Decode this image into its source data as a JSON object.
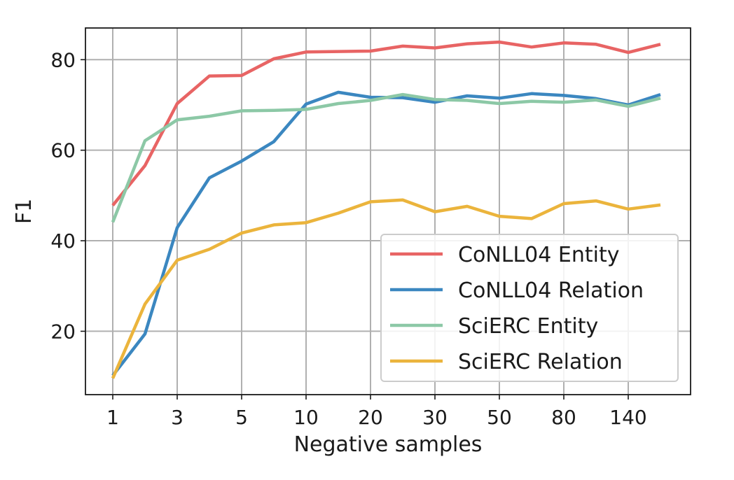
{
  "chart_data": {
    "type": "line",
    "xlabel": "Negative samples",
    "ylabel": "F1",
    "x": [
      1,
      2,
      3,
      4,
      5,
      7,
      10,
      15,
      20,
      25,
      30,
      40,
      50,
      60,
      80,
      100,
      140,
      180
    ],
    "xticks": [
      "1",
      "3",
      "5",
      "10",
      "20",
      "30",
      "50",
      "80",
      "140"
    ],
    "yticks": [
      20,
      40,
      60,
      80
    ],
    "ylim": [
      6,
      87
    ],
    "grid": true,
    "legend": "lower-right",
    "series": [
      {
        "name": "CoNLL04 Entity",
        "color": "#e86464",
        "values": [
          47.8,
          56.6,
          70.3,
          76.4,
          76.5,
          80.2,
          81.7,
          81.8,
          81.9,
          83.0,
          82.6,
          83.5,
          83.9,
          82.8,
          83.7,
          83.4,
          81.6,
          83.4
        ]
      },
      {
        "name": "CoNLL04 Relation",
        "color": "#3b87c0",
        "values": [
          10.2,
          19.4,
          42.9,
          53.9,
          57.6,
          61.9,
          70.2,
          72.8,
          71.7,
          71.6,
          70.6,
          72.0,
          71.5,
          72.5,
          72.1,
          71.4,
          70.0,
          72.3
        ]
      },
      {
        "name": "SciERC Entity",
        "color": "#8cc8a6",
        "values": [
          44.1,
          62.1,
          66.7,
          67.5,
          68.7,
          68.8,
          69.0,
          70.3,
          71.0,
          72.3,
          71.2,
          71.0,
          70.3,
          70.8,
          70.6,
          71.1,
          69.7,
          71.5
        ]
      },
      {
        "name": "SciERC Relation",
        "color": "#ebb43c",
        "values": [
          9.6,
          26.0,
          35.7,
          38.1,
          41.7,
          43.5,
          44.0,
          46.1,
          48.6,
          49.0,
          46.4,
          47.6,
          45.4,
          44.9,
          48.2,
          48.8,
          47.0,
          47.9
        ]
      }
    ]
  }
}
